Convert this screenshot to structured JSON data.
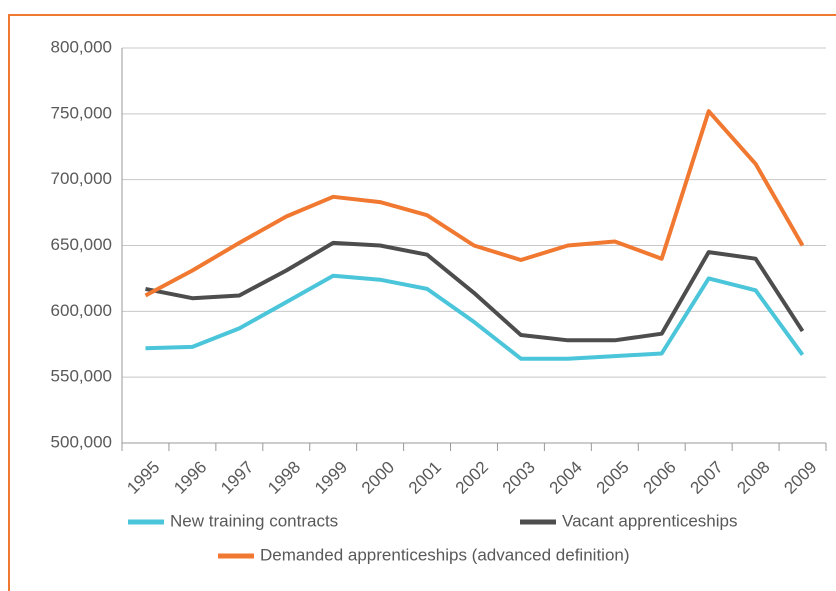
{
  "chart_data": {
    "type": "line",
    "categories": [
      "1995",
      "1996",
      "1997",
      "1998",
      "1999",
      "2000",
      "2001",
      "2002",
      "2003",
      "2004",
      "2005",
      "2006",
      "2007",
      "2008",
      "2009"
    ],
    "series": [
      {
        "name": "New training contracts",
        "color": "#4bc5d9",
        "values": [
          572000,
          573000,
          587000,
          607000,
          627000,
          624000,
          617000,
          592000,
          564000,
          564000,
          566000,
          568000,
          625000,
          616000,
          567000
        ]
      },
      {
        "name": "Vacant apprenticeships",
        "color": "#4d4d4d",
        "values": [
          617000,
          610000,
          612000,
          631000,
          652000,
          650000,
          643000,
          614000,
          582000,
          578000,
          578000,
          583000,
          645000,
          640000,
          585000
        ]
      },
      {
        "name": "Demanded apprenticeships (advanced definition)",
        "color": "#f07830",
        "values": [
          612000,
          631000,
          652000,
          672000,
          687000,
          683000,
          673000,
          650000,
          639000,
          650000,
          653000,
          640000,
          752000,
          712000,
          650000
        ]
      }
    ],
    "ylim": [
      500000,
      800000
    ],
    "yticks": [
      {
        "value": 500000,
        "label": "500,000"
      },
      {
        "value": 550000,
        "label": "550,000"
      },
      {
        "value": 600000,
        "label": "600,000"
      },
      {
        "value": 650000,
        "label": "650,000"
      },
      {
        "value": 700000,
        "label": "700,000"
      },
      {
        "value": 750000,
        "label": "750,000"
      },
      {
        "value": 800000,
        "label": "800,000"
      }
    ],
    "grid": true
  }
}
